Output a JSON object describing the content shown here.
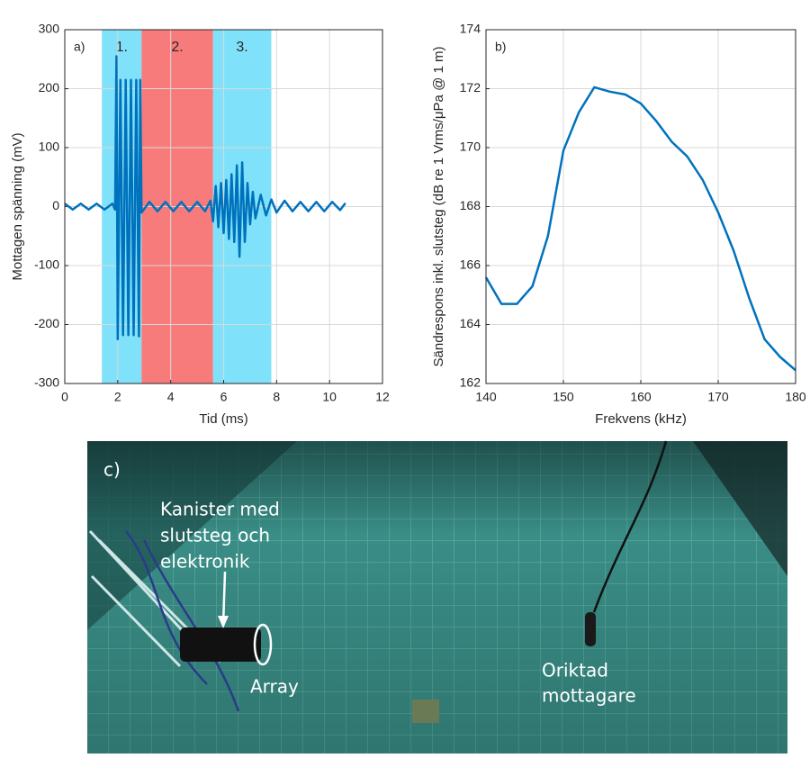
{
  "chart_data": [
    {
      "type": "line",
      "panel_label": "a)",
      "xlabel": "Tid (ms)",
      "ylabel": "Mottagen spänning (mV)",
      "xlim": [
        0,
        12
      ],
      "xticks": [
        0,
        2,
        4,
        6,
        8,
        10,
        12
      ],
      "ylim": [
        -300,
        300
      ],
      "yticks": [
        -300,
        -200,
        -100,
        0,
        100,
        200,
        300
      ],
      "grid": true,
      "regions": [
        {
          "start": 1.4,
          "end": 2.9,
          "label": "1.",
          "color": "#80e2fa"
        },
        {
          "start": 2.9,
          "end": 5.6,
          "label": "2.",
          "color": "#f77b7b"
        },
        {
          "start": 5.6,
          "end": 7.8,
          "label": "3.",
          "color": "#80e2fa"
        }
      ],
      "series": [
        {
          "color": "#0072bd",
          "x": [
            0.0,
            0.3,
            0.6,
            0.9,
            1.2,
            1.5,
            1.8,
            1.9,
            1.95,
            2.0,
            2.1,
            2.2,
            2.3,
            2.4,
            2.5,
            2.6,
            2.7,
            2.8,
            2.85,
            2.9,
            3.2,
            3.5,
            3.8,
            4.1,
            4.4,
            4.7,
            5.0,
            5.3,
            5.5,
            5.6,
            5.7,
            5.8,
            5.9,
            6.0,
            6.1,
            6.2,
            6.3,
            6.4,
            6.5,
            6.6,
            6.7,
            6.8,
            6.9,
            7.0,
            7.1,
            7.2,
            7.4,
            7.6,
            7.8,
            8.0,
            8.3,
            8.6,
            8.9,
            9.2,
            9.5,
            9.8,
            10.1,
            10.4,
            10.6
          ],
          "values": [
            5,
            -5,
            5,
            -5,
            5,
            -5,
            5,
            -5,
            255,
            -225,
            215,
            -218,
            215,
            -218,
            215,
            -218,
            215,
            -220,
            215,
            -10,
            8,
            -8,
            8,
            -8,
            8,
            -8,
            8,
            -8,
            10,
            -25,
            35,
            -35,
            40,
            -45,
            45,
            -55,
            55,
            -60,
            70,
            -85,
            75,
            -60,
            40,
            -30,
            25,
            -20,
            20,
            -15,
            12,
            -10,
            10,
            -8,
            8,
            -8,
            8,
            -8,
            8,
            -6,
            6
          ]
        }
      ]
    },
    {
      "type": "line",
      "panel_label": "b)",
      "xlabel": "Frekvens (kHz)",
      "ylabel": "Sändrespons inkl. slutsteg (dB re 1 Vrms/μPa @ 1 m)",
      "xlim": [
        140,
        180
      ],
      "xticks": [
        140,
        150,
        160,
        170,
        180
      ],
      "ylim": [
        162,
        174
      ],
      "yticks": [
        162,
        164,
        166,
        168,
        170,
        172,
        174
      ],
      "grid": true,
      "series": [
        {
          "color": "#0072bd",
          "x": [
            140,
            142,
            144,
            146,
            148,
            150,
            152,
            154,
            156,
            158,
            160,
            162,
            164,
            166,
            168,
            170,
            172,
            174,
            176,
            178,
            180
          ],
          "values": [
            165.6,
            164.7,
            164.7,
            165.3,
            167.0,
            169.9,
            171.2,
            172.05,
            171.9,
            171.8,
            171.5,
            170.9,
            170.2,
            169.7,
            168.9,
            167.8,
            166.5,
            164.9,
            163.5,
            162.9,
            162.45
          ]
        }
      ]
    }
  ],
  "photo": {
    "label": "c)",
    "canister_label": [
      "Kanister med",
      "slutsteg och",
      "elektronik"
    ],
    "array_label": "Array",
    "receiver_label": [
      "Oriktad",
      "mottagare"
    ]
  }
}
